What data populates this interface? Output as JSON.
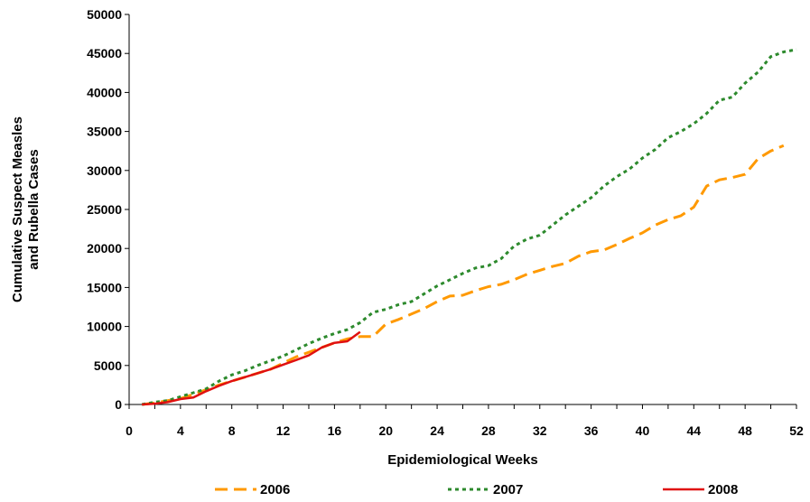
{
  "chart_data": {
    "type": "line",
    "title": "",
    "xlabel": "Epidemiological Weeks",
    "ylabel_lines": [
      "Cumulative Suspect Measles",
      "and Rubella Cases"
    ],
    "xlim": [
      0,
      52
    ],
    "ylim": [
      0,
      50000
    ],
    "x_ticks": [
      0,
      4,
      8,
      12,
      16,
      20,
      24,
      28,
      32,
      36,
      40,
      44,
      48,
      52
    ],
    "y_ticks": [
      0,
      5000,
      10000,
      15000,
      20000,
      25000,
      30000,
      35000,
      40000,
      45000,
      50000
    ],
    "grid": false,
    "legend_position": "bottom",
    "series": [
      {
        "name": "2006",
        "color": "#ff9900",
        "dash": "long-dash",
        "points": [
          [
            1,
            0
          ],
          [
            2,
            200
          ],
          [
            3,
            500
          ],
          [
            4,
            750
          ],
          [
            5,
            1300
          ],
          [
            6,
            1900
          ],
          [
            7,
            2500
          ],
          [
            8,
            3000
          ],
          [
            9,
            3500
          ],
          [
            10,
            4000
          ],
          [
            11,
            4500
          ],
          [
            12,
            5300
          ],
          [
            13,
            6100
          ],
          [
            14,
            6700
          ],
          [
            15,
            7300
          ],
          [
            16,
            7900
          ],
          [
            17,
            8400
          ],
          [
            18,
            8700
          ],
          [
            19,
            8700
          ],
          [
            20,
            10300
          ],
          [
            21,
            10900
          ],
          [
            22,
            11600
          ],
          [
            23,
            12300
          ],
          [
            24,
            13200
          ],
          [
            25,
            13900
          ],
          [
            26,
            14000
          ],
          [
            27,
            14600
          ],
          [
            28,
            15100
          ],
          [
            29,
            15400
          ],
          [
            30,
            16000
          ],
          [
            31,
            16700
          ],
          [
            32,
            17200
          ],
          [
            33,
            17700
          ],
          [
            34,
            18100
          ],
          [
            35,
            19000
          ],
          [
            36,
            19600
          ],
          [
            37,
            19800
          ],
          [
            38,
            20500
          ],
          [
            39,
            21300
          ],
          [
            40,
            22000
          ],
          [
            41,
            23000
          ],
          [
            42,
            23700
          ],
          [
            43,
            24200
          ],
          [
            44,
            25300
          ],
          [
            45,
            28000
          ],
          [
            46,
            28800
          ],
          [
            47,
            29100
          ],
          [
            48,
            29500
          ],
          [
            49,
            31500
          ],
          [
            50,
            32500
          ],
          [
            51,
            33200
          ]
        ]
      },
      {
        "name": "2007",
        "color": "#2d8a2d",
        "dash": "dotted",
        "points": [
          [
            1,
            0
          ],
          [
            2,
            300
          ],
          [
            3,
            500
          ],
          [
            4,
            1000
          ],
          [
            5,
            1500
          ],
          [
            6,
            2000
          ],
          [
            7,
            3000
          ],
          [
            8,
            3800
          ],
          [
            9,
            4300
          ],
          [
            10,
            5000
          ],
          [
            11,
            5600
          ],
          [
            12,
            6200
          ],
          [
            13,
            7000
          ],
          [
            14,
            7800
          ],
          [
            15,
            8500
          ],
          [
            16,
            9100
          ],
          [
            17,
            9600
          ],
          [
            18,
            10500
          ],
          [
            19,
            11800
          ],
          [
            20,
            12200
          ],
          [
            21,
            12800
          ],
          [
            22,
            13200
          ],
          [
            23,
            14200
          ],
          [
            24,
            15200
          ],
          [
            25,
            16000
          ],
          [
            26,
            16800
          ],
          [
            27,
            17500
          ],
          [
            28,
            17800
          ],
          [
            29,
            18700
          ],
          [
            30,
            20300
          ],
          [
            31,
            21200
          ],
          [
            32,
            21700
          ],
          [
            33,
            23000
          ],
          [
            34,
            24300
          ],
          [
            35,
            25400
          ],
          [
            36,
            26500
          ],
          [
            37,
            28000
          ],
          [
            38,
            29200
          ],
          [
            39,
            30200
          ],
          [
            40,
            31600
          ],
          [
            41,
            32700
          ],
          [
            42,
            34200
          ],
          [
            43,
            35000
          ],
          [
            44,
            36000
          ],
          [
            45,
            37300
          ],
          [
            46,
            39000
          ],
          [
            47,
            39400
          ],
          [
            48,
            41200
          ],
          [
            49,
            42600
          ],
          [
            50,
            44600
          ],
          [
            51,
            45200
          ],
          [
            52,
            45500
          ]
        ]
      },
      {
        "name": "2008",
        "color": "#e01010",
        "dash": "solid",
        "points": [
          [
            1,
            0
          ],
          [
            2,
            100
          ],
          [
            3,
            300
          ],
          [
            4,
            700
          ],
          [
            5,
            900
          ],
          [
            6,
            1700
          ],
          [
            7,
            2400
          ],
          [
            8,
            3000
          ],
          [
            9,
            3500
          ],
          [
            10,
            4000
          ],
          [
            11,
            4500
          ],
          [
            12,
            5100
          ],
          [
            13,
            5700
          ],
          [
            14,
            6300
          ],
          [
            15,
            7300
          ],
          [
            16,
            7900
          ],
          [
            17,
            8100
          ],
          [
            18,
            9300
          ]
        ]
      }
    ]
  }
}
